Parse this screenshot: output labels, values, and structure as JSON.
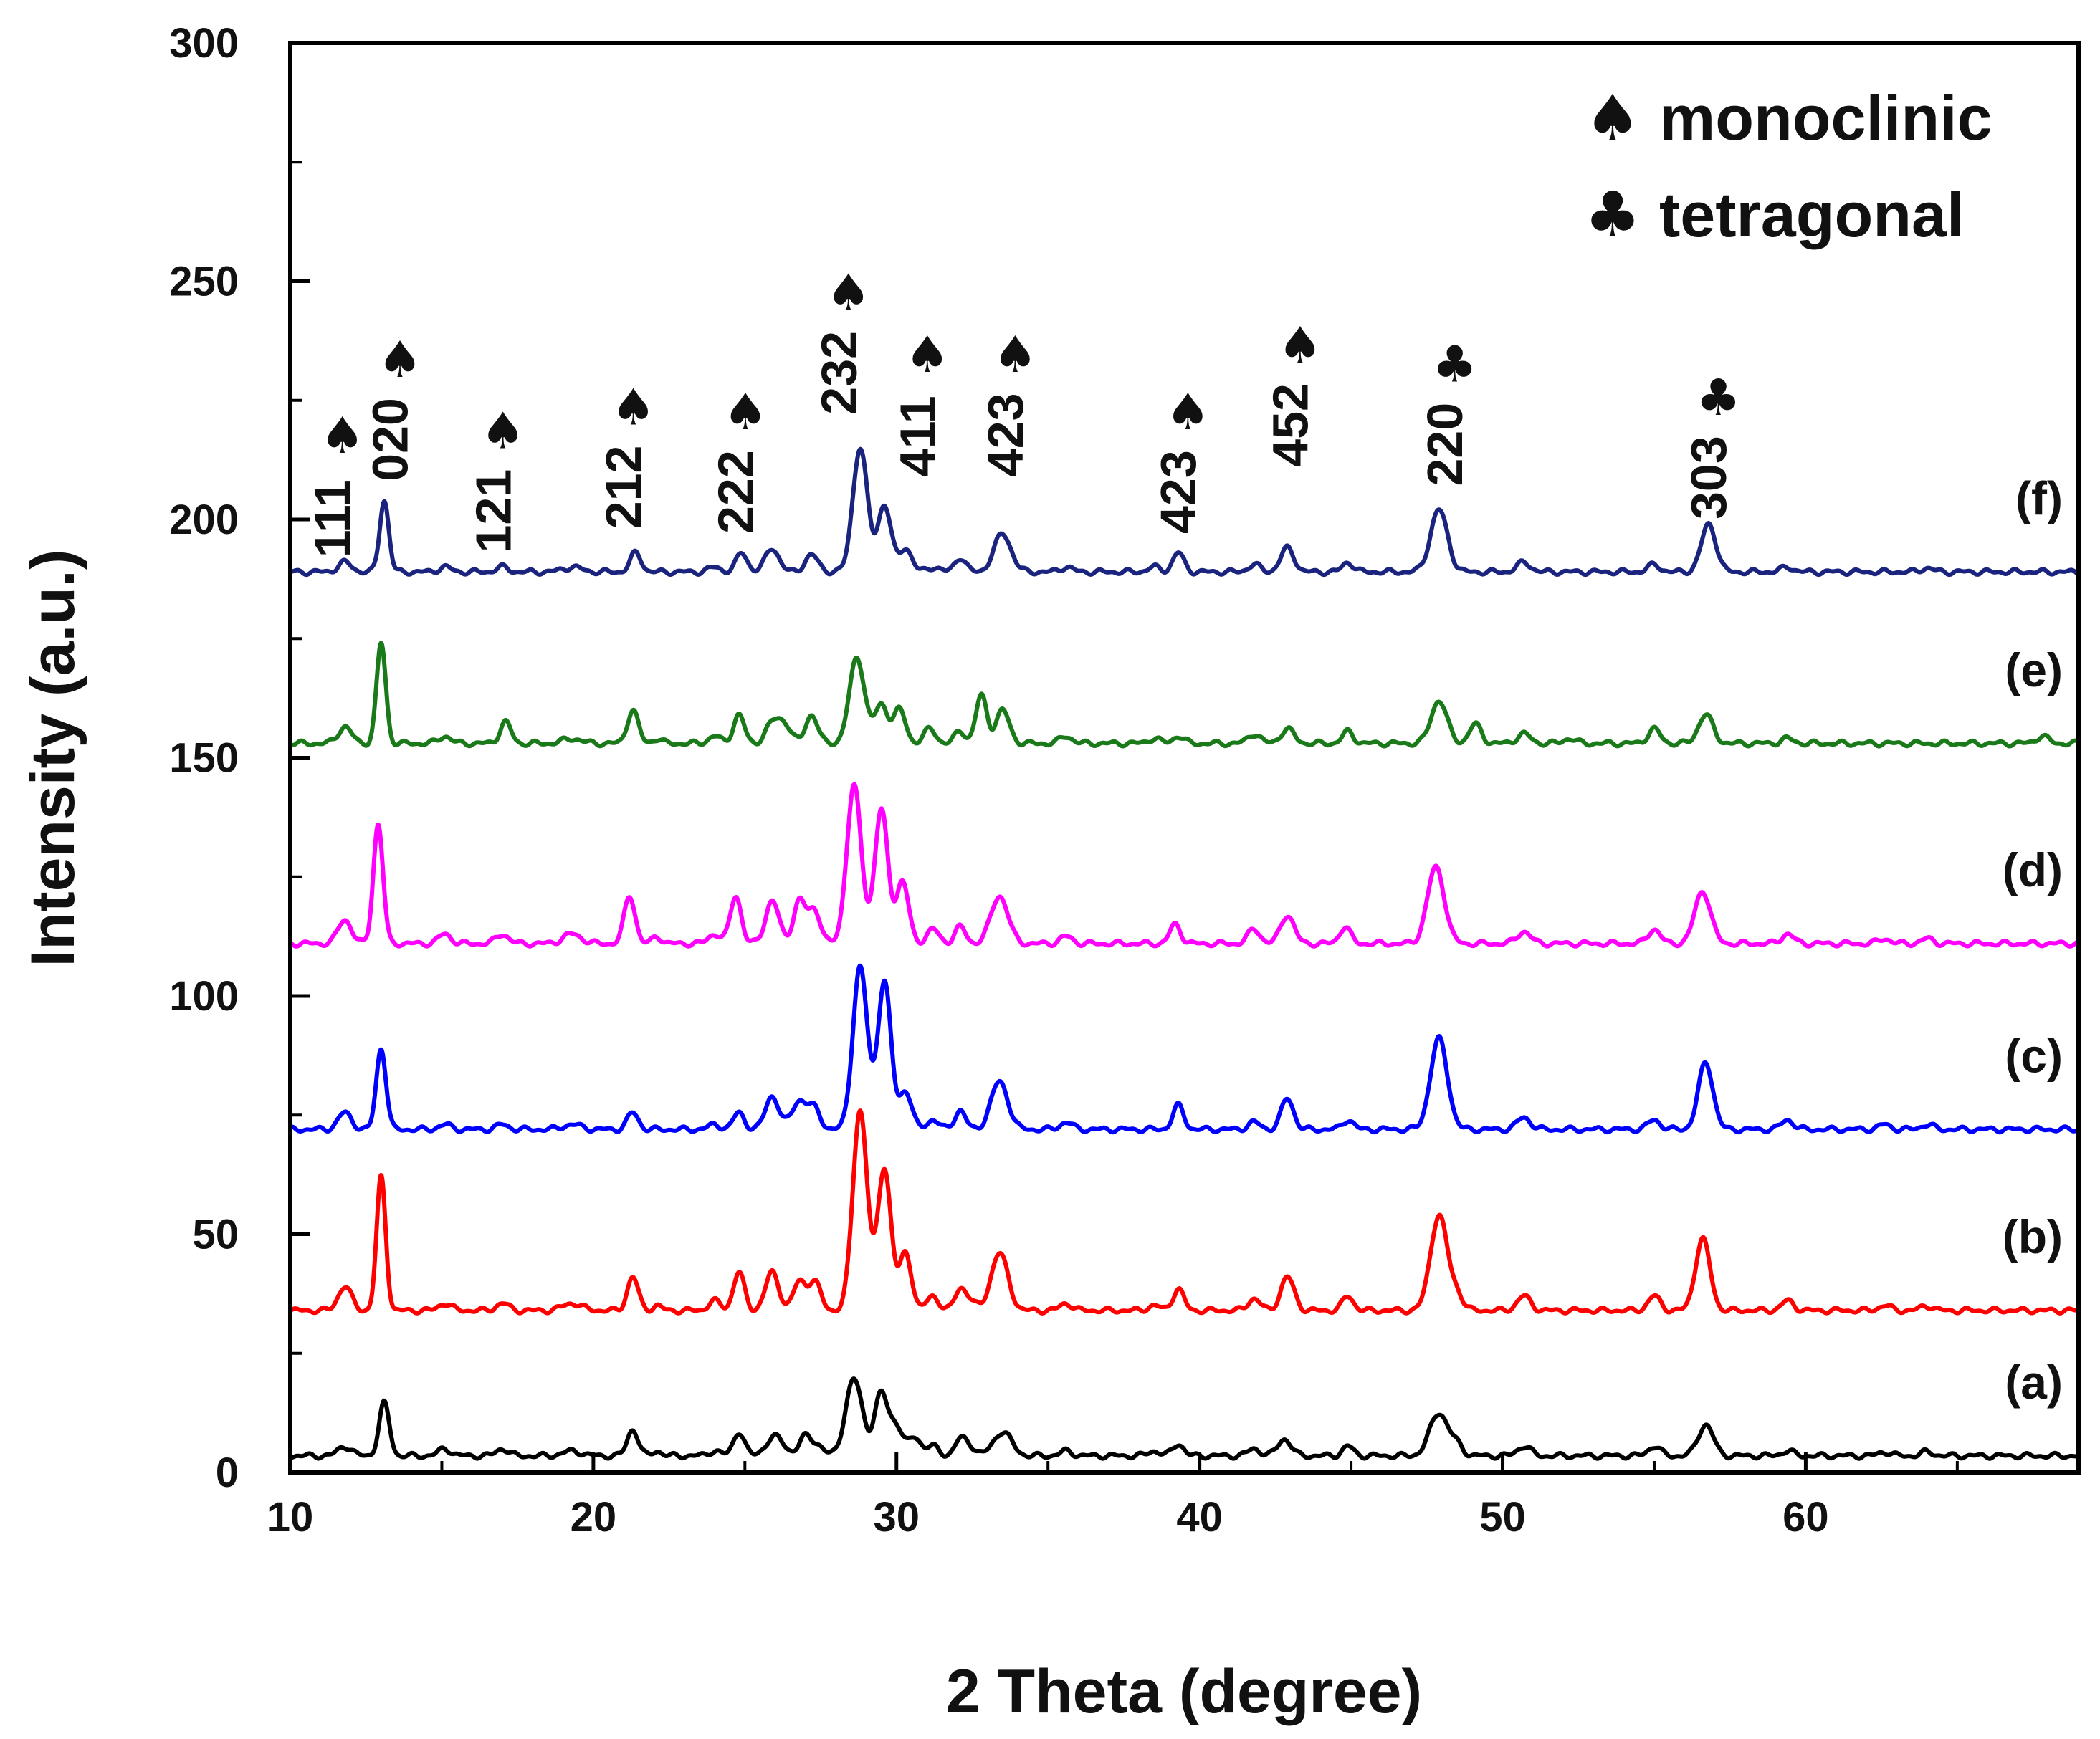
{
  "chart_data": {
    "type": "line",
    "title": "",
    "xlabel": "2 Theta (degree)",
    "ylabel": "Intensity (a.u.)",
    "xlim": [
      10,
      69
    ],
    "ylim": [
      0,
      300
    ],
    "x_ticks": [
      10,
      20,
      30,
      40,
      50,
      60
    ],
    "y_ticks": [
      0,
      50,
      100,
      150,
      200,
      250,
      300
    ],
    "grid": false,
    "peak_shape": "gaussian",
    "series": [
      {
        "name": "(a)",
        "color": "#000000",
        "baseline": 3.5,
        "line_width": 6,
        "peaks": [
          [
            11.8,
            2,
            0.22
          ],
          [
            13.1,
            11,
            0.17
          ],
          [
            15.1,
            1.5,
            0.2
          ],
          [
            17.0,
            1.5,
            0.2
          ],
          [
            19.3,
            1,
            0.3
          ],
          [
            21.3,
            5.5,
            0.18
          ],
          [
            22.1,
            1,
            0.15
          ],
          [
            24.0,
            1,
            0.2
          ],
          [
            24.8,
            5,
            0.18
          ],
          [
            26.0,
            4,
            0.3
          ],
          [
            27.0,
            4,
            0.2
          ],
          [
            27.4,
            2,
            0.2
          ],
          [
            28.6,
            16,
            0.28
          ],
          [
            29.5,
            13,
            0.22
          ],
          [
            30.0,
            6,
            0.2
          ],
          [
            30.6,
            4,
            0.2
          ],
          [
            31.2,
            2,
            0.2
          ],
          [
            32.1,
            3,
            0.18
          ],
          [
            32.4,
            2,
            0.2
          ],
          [
            33.5,
            5,
            0.3
          ],
          [
            35.6,
            1,
            0.2
          ],
          [
            38.5,
            1,
            0.2
          ],
          [
            39.3,
            2.5,
            0.18
          ],
          [
            41.8,
            1.5,
            0.2
          ],
          [
            42.8,
            3.5,
            0.22
          ],
          [
            44.9,
            2,
            0.18
          ],
          [
            47.9,
            9,
            0.3
          ],
          [
            48.5,
            2,
            0.2
          ],
          [
            50.7,
            2,
            0.22
          ],
          [
            55.0,
            2,
            0.2
          ],
          [
            56.7,
            6.5,
            0.25
          ],
          [
            59.4,
            1,
            0.2
          ],
          [
            62.6,
            0.8,
            0.2
          ],
          [
            64.0,
            0.8,
            0.2
          ]
        ]
      },
      {
        "name": "(b)",
        "color": "#ff0000",
        "baseline": 34,
        "line_width": 6,
        "peaks": [
          [
            11.8,
            5,
            0.22
          ],
          [
            13.0,
            28,
            0.15
          ],
          [
            15.1,
            1.5,
            0.2
          ],
          [
            17.0,
            1.5,
            0.2
          ],
          [
            19.3,
            1.5,
            0.3
          ],
          [
            21.3,
            7,
            0.18
          ],
          [
            22.1,
            1,
            0.15
          ],
          [
            24.0,
            2,
            0.2
          ],
          [
            24.8,
            8,
            0.18
          ],
          [
            25.9,
            8,
            0.22
          ],
          [
            26.8,
            6,
            0.2
          ],
          [
            27.3,
            6,
            0.2
          ],
          [
            28.8,
            42,
            0.24
          ],
          [
            29.6,
            30,
            0.22
          ],
          [
            30.3,
            12,
            0.2
          ],
          [
            31.2,
            3,
            0.2
          ],
          [
            32.1,
            4,
            0.18
          ],
          [
            32.4,
            2,
            0.2
          ],
          [
            33.4,
            12,
            0.28
          ],
          [
            35.6,
            1.5,
            0.2
          ],
          [
            38.5,
            1,
            0.2
          ],
          [
            39.3,
            4.5,
            0.18
          ],
          [
            41.8,
            2.5,
            0.2
          ],
          [
            42.9,
            7,
            0.22
          ],
          [
            44.9,
            3,
            0.18
          ],
          [
            47.9,
            20,
            0.28
          ],
          [
            48.5,
            3,
            0.2
          ],
          [
            50.7,
            3,
            0.22
          ],
          [
            55.0,
            3,
            0.2
          ],
          [
            56.6,
            15,
            0.24
          ],
          [
            59.4,
            2,
            0.2
          ],
          [
            62.6,
            1,
            0.2
          ],
          [
            64.0,
            1,
            0.2
          ]
        ]
      },
      {
        "name": "(c)",
        "color": "#0000ff",
        "baseline": 72,
        "line_width": 6,
        "peaks": [
          [
            11.8,
            3.5,
            0.22
          ],
          [
            13.0,
            17,
            0.16
          ],
          [
            15.1,
            1,
            0.2
          ],
          [
            17.0,
            1,
            0.2
          ],
          [
            19.3,
            1,
            0.3
          ],
          [
            21.3,
            3.5,
            0.18
          ],
          [
            24.0,
            1,
            0.2
          ],
          [
            24.8,
            3.5,
            0.18
          ],
          [
            25.9,
            7,
            0.22
          ],
          [
            26.8,
            6,
            0.25
          ],
          [
            27.3,
            4,
            0.2
          ],
          [
            28.8,
            34,
            0.24
          ],
          [
            29.6,
            31,
            0.22
          ],
          [
            30.3,
            8,
            0.2
          ],
          [
            31.2,
            2,
            0.2
          ],
          [
            32.1,
            4,
            0.18
          ],
          [
            33.4,
            10,
            0.28
          ],
          [
            35.6,
            1.5,
            0.2
          ],
          [
            39.3,
            5,
            0.18
          ],
          [
            41.8,
            1.5,
            0.2
          ],
          [
            42.9,
            6.5,
            0.2
          ],
          [
            44.9,
            2,
            0.18
          ],
          [
            47.9,
            19,
            0.28
          ],
          [
            50.7,
            2.5,
            0.22
          ],
          [
            55.0,
            2,
            0.2
          ],
          [
            56.7,
            14,
            0.24
          ],
          [
            59.4,
            2,
            0.2
          ],
          [
            62.6,
            1,
            0.2
          ],
          [
            64.0,
            1,
            0.2
          ]
        ]
      },
      {
        "name": "(d)",
        "color": "#ff00ff",
        "baseline": 111,
        "line_width": 6,
        "peaks": [
          [
            11.8,
            5,
            0.22
          ],
          [
            12.9,
            25,
            0.16
          ],
          [
            15.1,
            2,
            0.2
          ],
          [
            17.0,
            2,
            0.2
          ],
          [
            19.3,
            2,
            0.3
          ],
          [
            21.2,
            10,
            0.18
          ],
          [
            22.1,
            1.5,
            0.15
          ],
          [
            24.0,
            2,
            0.2
          ],
          [
            24.7,
            10,
            0.18
          ],
          [
            25.9,
            9,
            0.22
          ],
          [
            26.8,
            9,
            0.2
          ],
          [
            27.3,
            7,
            0.2
          ],
          [
            28.6,
            33,
            0.24
          ],
          [
            29.5,
            28,
            0.22
          ],
          [
            30.2,
            13,
            0.2
          ],
          [
            31.2,
            3,
            0.2
          ],
          [
            32.1,
            3.5,
            0.18
          ],
          [
            33.4,
            10,
            0.28
          ],
          [
            35.6,
            1.5,
            0.2
          ],
          [
            39.2,
            4,
            0.18
          ],
          [
            41.8,
            3,
            0.2
          ],
          [
            42.9,
            6,
            0.22
          ],
          [
            44.8,
            3.5,
            0.18
          ],
          [
            47.8,
            16,
            0.28
          ],
          [
            50.7,
            2.5,
            0.22
          ],
          [
            55.0,
            3,
            0.2
          ],
          [
            56.6,
            11,
            0.26
          ],
          [
            59.4,
            2,
            0.2
          ],
          [
            62.6,
            1,
            0.2
          ],
          [
            64.0,
            1,
            0.2
          ]
        ]
      },
      {
        "name": "(e)",
        "color": "#1a7a1a",
        "baseline": 153,
        "line_width": 6,
        "peaks": [
          [
            11.8,
            3.5,
            0.22
          ],
          [
            13.0,
            21,
            0.15
          ],
          [
            15.1,
            1.5,
            0.2
          ],
          [
            17.1,
            4.5,
            0.18
          ],
          [
            19.3,
            1,
            0.3
          ],
          [
            21.3,
            7,
            0.18
          ],
          [
            22.1,
            1,
            0.15
          ],
          [
            24.0,
            1.5,
            0.2
          ],
          [
            24.8,
            6,
            0.18
          ],
          [
            25.9,
            4,
            0.22
          ],
          [
            26.3,
            4,
            0.22
          ],
          [
            27.2,
            6,
            0.2
          ],
          [
            28.7,
            18,
            0.25
          ],
          [
            29.5,
            8,
            0.22
          ],
          [
            30.1,
            7,
            0.2
          ],
          [
            31.1,
            3,
            0.2
          ],
          [
            32.1,
            2.5,
            0.18
          ],
          [
            32.8,
            10,
            0.18
          ],
          [
            33.5,
            7,
            0.22
          ],
          [
            35.6,
            1.5,
            0.2
          ],
          [
            38.5,
            1,
            0.2
          ],
          [
            39.3,
            1.5,
            0.18
          ],
          [
            41.8,
            2,
            0.2
          ],
          [
            42.9,
            3,
            0.22
          ],
          [
            44.9,
            2.5,
            0.18
          ],
          [
            47.9,
            9,
            0.26
          ],
          [
            49.1,
            4,
            0.2
          ],
          [
            50.7,
            2,
            0.22
          ],
          [
            52.2,
            1,
            0.2
          ],
          [
            55.0,
            3,
            0.2
          ],
          [
            56.7,
            6,
            0.24
          ],
          [
            59.4,
            1,
            0.2
          ],
          [
            67.8,
            1.5,
            0.2
          ]
        ]
      },
      {
        "name": "(f)",
        "color": "#1a237e",
        "baseline": 189,
        "line_width": 6,
        "peaks": [
          [
            11.8,
            2,
            0.22
          ],
          [
            13.1,
            15,
            0.15
          ],
          [
            15.1,
            1,
            0.2
          ],
          [
            17.0,
            1,
            0.2
          ],
          [
            19.3,
            1,
            0.3
          ],
          [
            21.4,
            4,
            0.18
          ],
          [
            24.0,
            1,
            0.2
          ],
          [
            24.9,
            4,
            0.18
          ],
          [
            25.9,
            5,
            0.22
          ],
          [
            27.2,
            3.5,
            0.22
          ],
          [
            28.8,
            26,
            0.24
          ],
          [
            29.6,
            14,
            0.22
          ],
          [
            30.3,
            5,
            0.2
          ],
          [
            31.2,
            1,
            0.2
          ],
          [
            32.1,
            3,
            0.18
          ],
          [
            33.5,
            8,
            0.28
          ],
          [
            35.6,
            1,
            0.2
          ],
          [
            38.5,
            1,
            0.2
          ],
          [
            39.3,
            4,
            0.18
          ],
          [
            41.8,
            1.5,
            0.2
          ],
          [
            42.9,
            5,
            0.22
          ],
          [
            44.9,
            2,
            0.18
          ],
          [
            47.9,
            13,
            0.28
          ],
          [
            50.7,
            2,
            0.22
          ],
          [
            55.0,
            1.5,
            0.2
          ],
          [
            56.8,
            10,
            0.24
          ],
          [
            59.4,
            1,
            0.2
          ],
          [
            64.0,
            0.8,
            0.2
          ]
        ]
      }
    ],
    "annotations": [
      {
        "hkl": "111",
        "phase": "monoclinic",
        "x": 11.4,
        "y_bottom": 192
      },
      {
        "hkl": "020",
        "phase": "monoclinic",
        "x": 13.3,
        "y_bottom": 208
      },
      {
        "hkl": "121",
        "phase": "monoclinic",
        "x": 16.7,
        "y_bottom": 193
      },
      {
        "hkl": "212",
        "phase": "monoclinic",
        "x": 21.0,
        "y_bottom": 198
      },
      {
        "hkl": "222",
        "phase": "monoclinic",
        "x": 24.7,
        "y_bottom": 197
      },
      {
        "hkl": "232",
        "phase": "monoclinic",
        "x": 28.1,
        "y_bottom": 222
      },
      {
        "hkl": "411",
        "phase": "monoclinic",
        "x": 30.7,
        "y_bottom": 209
      },
      {
        "hkl": "423",
        "phase": "monoclinic",
        "x": 33.6,
        "y_bottom": 209
      },
      {
        "hkl": "423",
        "phase": "monoclinic",
        "x": 39.3,
        "y_bottom": 197
      },
      {
        "hkl": "452",
        "phase": "monoclinic",
        "x": 43.0,
        "y_bottom": 211
      },
      {
        "hkl": "220",
        "phase": "tetragonal",
        "x": 48.1,
        "y_bottom": 207
      },
      {
        "hkl": "303",
        "phase": "tetragonal",
        "x": 56.8,
        "y_bottom": 200
      }
    ],
    "legend": {
      "position": "top-right",
      "entries": [
        {
          "symbol": "♠",
          "label": "monoclinic"
        },
        {
          "symbol": "♣",
          "label": "tetragonal"
        }
      ]
    }
  }
}
